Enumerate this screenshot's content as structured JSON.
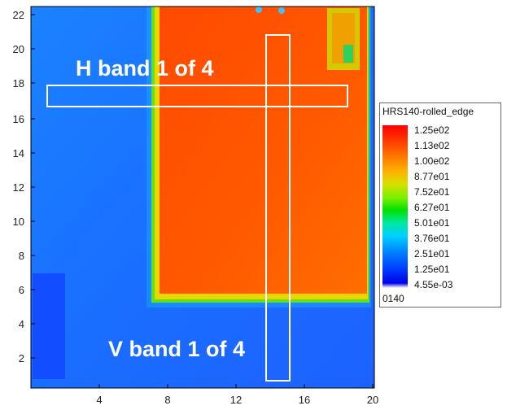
{
  "legend": {
    "title": "HRS140-rolled_edge",
    "labels": [
      "1.25e02",
      "1.13e02",
      "1.00e02",
      "8.77e01",
      "7.52e01",
      "6.27e01",
      "5.01e01",
      "3.76e01",
      "2.51e01",
      "1.25e01",
      "4.55e-03"
    ],
    "id": "0140"
  },
  "bands": {
    "h_label": "H band 1 of 4",
    "v_label": "V band 1 of 4"
  },
  "axes": {
    "x_ticks": [
      "4",
      "8",
      "12",
      "16",
      "20"
    ],
    "y_ticks": [
      "2",
      "4",
      "6",
      "8",
      "10",
      "12",
      "14",
      "16",
      "18",
      "20",
      "22"
    ]
  },
  "colors": {
    "frame": "#000000",
    "band_outline": "#ffffff",
    "background_low": "#1a6cff",
    "plate_high": "#ff5a00"
  }
}
